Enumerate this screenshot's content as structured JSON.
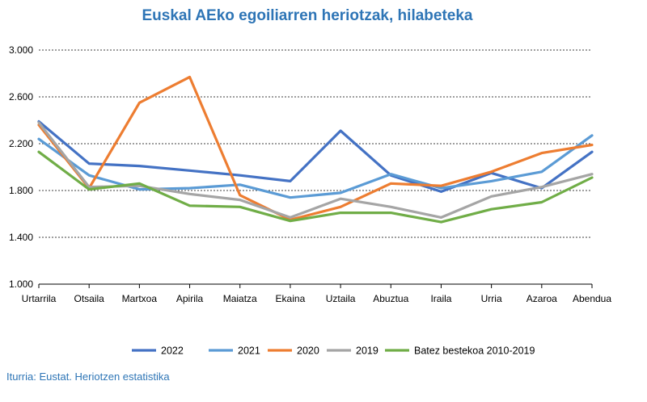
{
  "chart_data": {
    "type": "line",
    "title": "Euskal AEko egoiliarren heriotzak, hilabeteka",
    "categories": [
      "Urtarrila",
      "Otsaila",
      "Martxoa",
      "Apirila",
      "Maiatza",
      "Ekaina",
      "Uztaila",
      "Abuztua",
      "Iraila",
      "Urria",
      "Azaroa",
      "Abendua"
    ],
    "ylim": [
      1000,
      3000
    ],
    "yticks": [
      1000,
      1400,
      1800,
      2200,
      2600,
      3000
    ],
    "ytick_labels": [
      "1.000",
      "1.400",
      "1.800",
      "2.200",
      "2.600",
      "3.000"
    ],
    "grid": true,
    "legend_position": "bottom",
    "series": [
      {
        "name": "2022",
        "color": "#4472c4",
        "values": [
          2390,
          2030,
          2010,
          1970,
          1930,
          1880,
          2310,
          1930,
          1790,
          1950,
          1820,
          2130
        ]
      },
      {
        "name": "2021",
        "color": "#5b9bd5",
        "values": [
          2240,
          1930,
          1810,
          1820,
          1850,
          1740,
          1780,
          1940,
          1820,
          1880,
          1960,
          2270
        ]
      },
      {
        "name": "2020",
        "color": "#ed7d31",
        "values": [
          2360,
          1820,
          2550,
          2770,
          1760,
          1550,
          1660,
          1860,
          1840,
          1960,
          2120,
          2190
        ]
      },
      {
        "name": "2019",
        "color": "#a5a5a5",
        "values": [
          2380,
          1830,
          1840,
          1770,
          1720,
          1570,
          1730,
          1660,
          1570,
          1750,
          1830,
          1940
        ]
      },
      {
        "name": "Batez bestekoa 2010-2019",
        "color": "#70ad47",
        "values": [
          2130,
          1810,
          1860,
          1670,
          1660,
          1540,
          1610,
          1610,
          1530,
          1640,
          1700,
          1910
        ]
      }
    ]
  },
  "source": "Iturria: Eustat. Heriotzen estatistika",
  "colors": {
    "title": "#2e75b6",
    "source": "#2e75b6",
    "grid": "#000000"
  }
}
